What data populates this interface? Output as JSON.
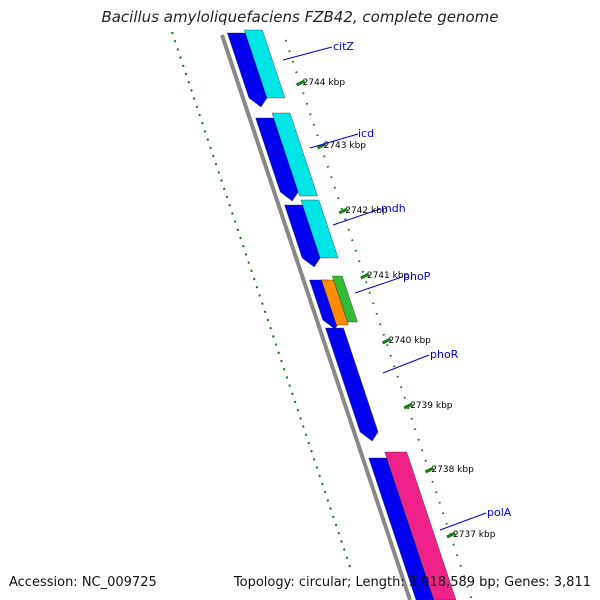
{
  "title": "Bacillus amyloliquefaciens FZB42, complete genome",
  "footer": {
    "accession": "Accession: NC_009725",
    "stats": "Topology: circular; Length: 3,918,589 bp; Genes: 3,811"
  },
  "colors": {
    "backbone": "#888888",
    "forward_cds": "#0000ee",
    "cyan_feature": "#00e5e5",
    "orange_feature": "#ff8c00",
    "green_feature": "#33bb33",
    "pink_feature": "#ee2288",
    "tick": "#1a7a1a",
    "label": "#0000cc"
  },
  "ticks": [
    {
      "label": "2744 kbp",
      "kbp": 2744
    },
    {
      "label": "2743 kbp",
      "kbp": 2743
    },
    {
      "label": "2742 kbp",
      "kbp": 2742
    },
    {
      "label": "2741 kbp",
      "kbp": 2741
    },
    {
      "label": "2740 kbp",
      "kbp": 2740
    },
    {
      "label": "2739 kbp",
      "kbp": 2739
    },
    {
      "label": "2738 kbp",
      "kbp": 2738
    },
    {
      "label": "2737 kbp",
      "kbp": 2737
    }
  ],
  "genes": [
    {
      "name": "citZ"
    },
    {
      "name": "icd"
    },
    {
      "name": "mdh"
    },
    {
      "name": "phoP"
    },
    {
      "name": "phoR"
    },
    {
      "name": "polA"
    }
  ]
}
